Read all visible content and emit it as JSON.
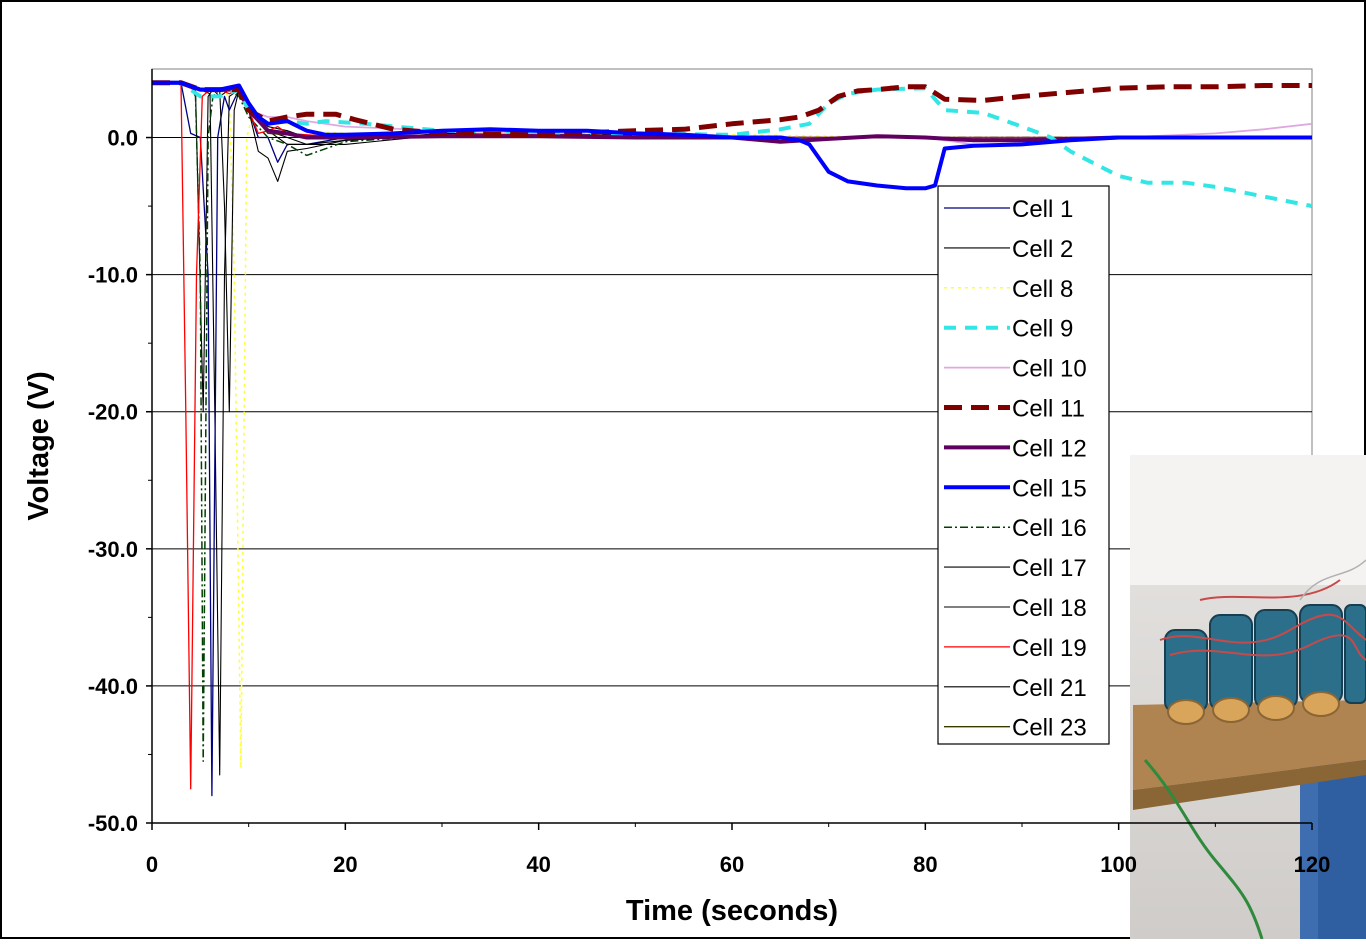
{
  "chart_data": {
    "type": "line",
    "title": "",
    "xlabel": "Time (seconds)",
    "ylabel": "Voltage (V)",
    "xlim": [
      0,
      120
    ],
    "ylim": [
      -50,
      5
    ],
    "x_ticks": [
      "0",
      "20",
      "40",
      "60",
      "80",
      "100",
      "120"
    ],
    "y_ticks": [
      "0.0",
      "-10.0",
      "-20.0",
      "-30.0",
      "-40.0",
      "-50.0"
    ],
    "grid": "horizontal major gridlines",
    "legend_position": "right, inside plot",
    "series": [
      {
        "name": "Cell 1",
        "color": "#000080",
        "dash": "",
        "width": 1.3,
        "x": [
          0,
          3,
          4,
          5,
          5.8,
          6.2,
          6.8,
          7.5,
          8,
          9,
          10,
          11,
          12,
          13,
          14,
          16,
          20,
          30,
          40,
          50,
          60,
          70,
          80,
          90,
          100,
          110,
          120
        ],
        "y": [
          4,
          4,
          0.3,
          0,
          -10,
          -48,
          0,
          3,
          2,
          3.5,
          2,
          0,
          0,
          -1.8,
          -0.5,
          -0.5,
          0,
          0.2,
          0.2,
          0.2,
          0,
          0,
          0,
          0,
          0,
          0,
          0
        ]
      },
      {
        "name": "Cell 2",
        "color": "#000000",
        "dash": "",
        "width": 1.1,
        "x": [
          0,
          3,
          4.5,
          5.3,
          5.8,
          6.3,
          7,
          8,
          9,
          10,
          11,
          12,
          13,
          14,
          16,
          20,
          30,
          40,
          60,
          80,
          100,
          120
        ],
        "y": [
          4,
          4,
          3.5,
          -20,
          3,
          3.5,
          3,
          3.5,
          3.7,
          2,
          -1,
          -1.5,
          -3.2,
          -1,
          -0.8,
          -0.2,
          0.3,
          0.2,
          0,
          0,
          0,
          0
        ]
      },
      {
        "name": "Cell 8",
        "color": "#ffff33",
        "dash": "3,4",
        "width": 1.5,
        "x": [
          0,
          3,
          5,
          7,
          8,
          8.5,
          9.2,
          9.8,
          10.5,
          12,
          14,
          16,
          20,
          30,
          40,
          60,
          80,
          100,
          120
        ],
        "y": [
          4,
          4,
          3.5,
          3.5,
          3,
          -10,
          -46,
          0,
          2,
          1,
          1,
          0.5,
          0.3,
          0.3,
          0.3,
          0.2,
          0,
          0,
          0
        ]
      },
      {
        "name": "Cell 9",
        "color": "#33e6e6",
        "dash": "12,9",
        "width": 4,
        "x": [
          0,
          3,
          5,
          7,
          9,
          10,
          12,
          14,
          16,
          18,
          22,
          30,
          40,
          50,
          60,
          65,
          68,
          70,
          72,
          75,
          80,
          82,
          86,
          90,
          93,
          95,
          100,
          103,
          107,
          110,
          115,
          120
        ],
        "y": [
          4,
          4,
          3,
          3,
          3.5,
          2,
          1,
          1.2,
          1,
          1.2,
          1,
          0.5,
          0.4,
          0.3,
          0.2,
          0.6,
          1,
          2.5,
          3.2,
          3.5,
          3.6,
          2,
          1.8,
          0.8,
          0,
          -1,
          -2.8,
          -3.3,
          -3.3,
          -3.6,
          -4.3,
          -5
        ]
      },
      {
        "name": "Cell 10",
        "color": "#e0a8e0",
        "dash": "",
        "width": 1.8,
        "x": [
          0,
          3,
          5,
          7,
          9,
          10,
          12,
          14,
          16,
          20,
          30,
          40,
          60,
          70,
          80,
          85,
          90,
          100,
          110,
          115,
          120
        ],
        "y": [
          4,
          4,
          3.5,
          3.5,
          3.5,
          2,
          1.5,
          1.5,
          1.2,
          0.8,
          0.5,
          0.3,
          0.1,
          0,
          0,
          -0.5,
          -0.5,
          0,
          0.3,
          0.6,
          1
        ]
      },
      {
        "name": "Cell 11",
        "color": "#800000",
        "dash": "18,9",
        "width": 5,
        "x": [
          0,
          3,
          5,
          7,
          9,
          10,
          12,
          14,
          16,
          19,
          21,
          25,
          30,
          40,
          50,
          55,
          60,
          65,
          67,
          69,
          71,
          73,
          75,
          78,
          80,
          82,
          86,
          90,
          95,
          100,
          105,
          110,
          115,
          120
        ],
        "y": [
          4,
          4,
          3.5,
          3.5,
          3.5,
          2,
          1.2,
          1.5,
          1.7,
          1.7,
          1.3,
          0.6,
          0.3,
          0.2,
          0.5,
          0.6,
          1,
          1.3,
          1.5,
          2,
          3,
          3.4,
          3.5,
          3.7,
          3.7,
          2.8,
          2.7,
          3,
          3.3,
          3.6,
          3.7,
          3.7,
          3.8,
          3.8
        ]
      },
      {
        "name": "Cell 12",
        "color": "#600060",
        "dash": "",
        "width": 4,
        "x": [
          0,
          3,
          5,
          7,
          9,
          10,
          12,
          14,
          16,
          20,
          30,
          40,
          50,
          60,
          65,
          70,
          75,
          80,
          85,
          90,
          100,
          110,
          120
        ],
        "y": [
          4,
          4,
          3.5,
          3.5,
          3.5,
          2,
          0.5,
          0.3,
          0,
          0,
          0.1,
          0.1,
          0,
          0,
          -0.3,
          -0.1,
          0.1,
          0,
          -0.2,
          -0.2,
          0,
          0,
          0
        ]
      },
      {
        "name": "Cell 15",
        "color": "#0000ff",
        "dash": "",
        "width": 4,
        "x": [
          0,
          3,
          5,
          7,
          9,
          10,
          11,
          12,
          14,
          16,
          18,
          20,
          25,
          30,
          35,
          40,
          45,
          50,
          55,
          60,
          65,
          67,
          68,
          69,
          70,
          72,
          75,
          78,
          80,
          81,
          82,
          85,
          90,
          95,
          100,
          110,
          120
        ],
        "y": [
          4,
          4,
          3.5,
          3.5,
          3.8,
          2.5,
          1.5,
          1,
          1.2,
          0.5,
          0.2,
          0.2,
          0.3,
          0.5,
          0.6,
          0.5,
          0.5,
          0.3,
          0.2,
          0,
          0,
          -0.2,
          -0.5,
          -1.5,
          -2.5,
          -3.2,
          -3.5,
          -3.7,
          -3.7,
          -3.5,
          -0.8,
          -0.6,
          -0.5,
          -0.2,
          0,
          0,
          0
        ]
      },
      {
        "name": "Cell 16",
        "color": "#004000",
        "dash": "8,3,2,3",
        "width": 1.5,
        "x": [
          0,
          3,
          4,
          4.5,
          5,
          5.3,
          5.8,
          6.3,
          7,
          8,
          9,
          10,
          12,
          14,
          16,
          20,
          30,
          40,
          60,
          80,
          100,
          120
        ],
        "y": [
          4,
          4,
          3.8,
          3,
          -10,
          -45.5,
          0,
          3,
          3.5,
          3.5,
          3,
          1.5,
          0,
          -0.5,
          -1.3,
          -0.3,
          0.2,
          0.2,
          0,
          0,
          0,
          0
        ]
      },
      {
        "name": "Cell 17",
        "color": "#000000",
        "dash": "",
        "width": 1.1,
        "x": [
          0,
          3,
          5,
          6,
          6.5,
          7,
          7.5,
          8,
          9,
          10,
          12,
          14,
          16,
          20,
          30,
          40,
          60,
          80,
          100,
          120
        ],
        "y": [
          4,
          4,
          3.5,
          3.2,
          -20,
          -46.5,
          -10,
          3,
          3.5,
          2,
          0.5,
          0,
          -0.5,
          -0.5,
          0.2,
          0.2,
          0,
          0,
          0,
          0
        ]
      },
      {
        "name": "Cell 18",
        "color": "#000000",
        "dash": "",
        "width": 1.1,
        "x": [
          0,
          3,
          5,
          6,
          7,
          8,
          9,
          10,
          12,
          14,
          16,
          20,
          30,
          40,
          60,
          80,
          100,
          120
        ],
        "y": [
          4,
          4,
          3.5,
          3.5,
          3.5,
          3.5,
          3.5,
          2,
          0.8,
          0.5,
          0,
          0,
          0.2,
          0.2,
          0,
          0,
          0,
          0
        ]
      },
      {
        "name": "Cell 19",
        "color": "#ff0000",
        "dash": "",
        "width": 1.3,
        "x": [
          0,
          3,
          3.5,
          4,
          4.6,
          5.2,
          6,
          7,
          8,
          9,
          10,
          11,
          12,
          13,
          14,
          16,
          20,
          30,
          40,
          60,
          80,
          100,
          120
        ],
        "y": [
          4,
          4,
          -20,
          -47.5,
          -10,
          3,
          3.5,
          3.5,
          3.2,
          3.5,
          2,
          0.3,
          0.5,
          0.8,
          0.3,
          0.2,
          0,
          0.2,
          0.2,
          0,
          0,
          0,
          0
        ]
      },
      {
        "name": "Cell 21",
        "color": "#000000",
        "dash": "",
        "width": 1.1,
        "x": [
          0,
          3,
          5,
          6,
          7,
          7.5,
          8,
          8.5,
          9,
          10,
          12,
          14,
          16,
          20,
          30,
          40,
          60,
          80,
          100,
          120
        ],
        "y": [
          4,
          4,
          3.5,
          3.5,
          3.5,
          -5,
          -20,
          2,
          3.5,
          2,
          0.5,
          -0.5,
          -0.5,
          -0.2,
          0.2,
          0.2,
          0,
          0,
          0,
          0
        ]
      },
      {
        "name": "Cell 23",
        "color": "#3a3a00",
        "dash": "",
        "width": 1.3,
        "x": [
          0,
          3,
          5,
          7,
          9,
          10,
          12,
          14,
          16,
          20,
          30,
          40,
          60,
          80,
          100,
          120
        ],
        "y": [
          4,
          4,
          3.5,
          3.5,
          3.5,
          2,
          0.3,
          0.2,
          0,
          0,
          0.2,
          0.2,
          0,
          0,
          0,
          0
        ]
      }
    ]
  }
}
